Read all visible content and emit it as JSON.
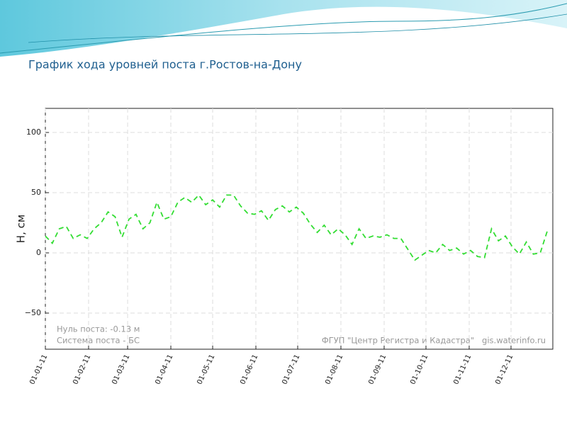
{
  "slide_title": "График хода уровней поста г.Ростов-на-Дону",
  "chart_data": {
    "type": "line",
    "y_label": "Н, см",
    "color": "#33dd33",
    "line_style": "dashed",
    "grid": true,
    "annotations": [
      "Нуль поста: -0.13 м",
      "Система поста - БС",
      "ФГУП \"Центр Регистра и Кадастра\"   gis.waterinfo.ru"
    ],
    "x": [
      "01-01-11",
      "06-01-11",
      "11-01-11",
      "16-01-11",
      "21-01-11",
      "26-01-11",
      "31-01-11",
      "05-02-11",
      "10-02-11",
      "15-02-11",
      "20-02-11",
      "25-02-11",
      "02-03-11",
      "07-03-11",
      "12-03-11",
      "17-03-11",
      "22-03-11",
      "27-03-11",
      "01-04-11",
      "06-04-11",
      "11-04-11",
      "16-04-11",
      "21-04-11",
      "26-04-11",
      "01-05-11",
      "06-05-11",
      "11-05-11",
      "16-05-11",
      "21-05-11",
      "26-05-11",
      "31-05-11",
      "05-06-11",
      "10-06-11",
      "15-06-11",
      "20-06-11",
      "25-06-11",
      "30-06-11",
      "05-07-11",
      "10-07-11",
      "15-07-11",
      "20-07-11",
      "25-07-11",
      "30-07-11",
      "04-08-11",
      "09-08-11",
      "14-08-11",
      "19-08-11",
      "24-08-11",
      "29-08-11",
      "03-09-11",
      "08-09-11",
      "13-09-11",
      "18-09-11",
      "23-09-11",
      "28-09-11",
      "03-10-11",
      "08-10-11",
      "13-10-11",
      "18-10-11",
      "23-10-11",
      "28-10-11",
      "02-11-11",
      "07-11-11",
      "12-11-11",
      "17-11-11",
      "22-11-11",
      "27-11-11",
      "02-12-11",
      "07-12-11",
      "12-12-11",
      "17-12-11",
      "22-12-11",
      "27-12-11"
    ],
    "values": [
      14,
      8,
      20,
      22,
      12,
      15,
      12,
      20,
      25,
      34,
      30,
      13,
      28,
      32,
      20,
      25,
      42,
      28,
      30,
      42,
      46,
      42,
      48,
      40,
      44,
      38,
      48,
      48,
      39,
      33,
      32,
      35,
      27,
      36,
      39,
      34,
      38,
      33,
      24,
      17,
      23,
      15,
      20,
      15,
      7,
      20,
      12,
      14,
      13,
      15,
      12,
      12,
      3,
      -6,
      -2,
      2,
      0,
      7,
      2,
      4,
      -1,
      2,
      -3,
      -4,
      20,
      10,
      14,
      5,
      -1,
      9,
      -1,
      0,
      18
    ],
    "xlim": [
      "01-01-11",
      "31-12-11"
    ],
    "xticks": [
      "01-01-11",
      "01-02-11",
      "01-03-11",
      "01-04-11",
      "01-05-11",
      "01-06-11",
      "01-07-11",
      "01-08-11",
      "01-09-11",
      "01-10-11",
      "01-11-11",
      "01-12-11"
    ],
    "ylim": [
      -80,
      120
    ],
    "yticks": [
      {
        "value": -50,
        "label": "−50"
      },
      0,
      50,
      100
    ]
  }
}
